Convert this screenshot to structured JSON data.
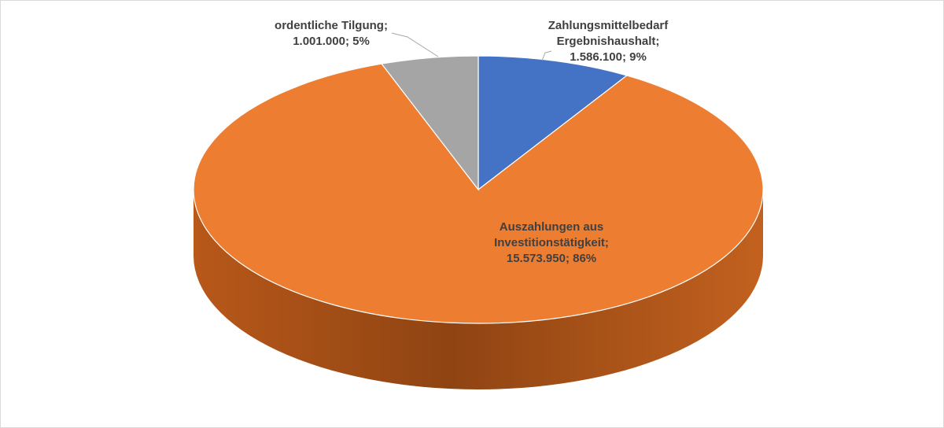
{
  "chart_data": {
    "type": "pie3d",
    "categories": [
      "Zahlungsmittelbedarf Ergebnishaushalt",
      "Auszahlungen aus Investitionstätigkeit",
      "ordentliche Tilgung"
    ],
    "values": [
      1586100,
      15573950,
      1001000
    ],
    "value_labels": [
      "1.586.100",
      "15.573.950",
      "1.001.000"
    ],
    "percent_labels": [
      "9%",
      "86%",
      "5%"
    ],
    "label_separator": "; ",
    "colors": [
      "#4472c4",
      "#ed7d31",
      "#a5a5a5"
    ]
  }
}
